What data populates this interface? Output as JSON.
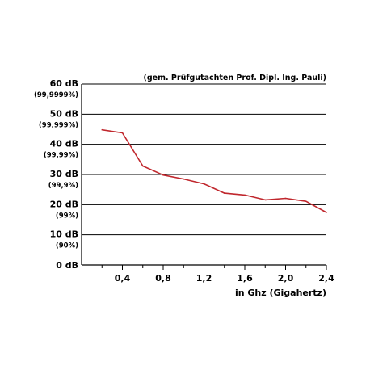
{
  "chart_data": {
    "type": "line",
    "title": "",
    "annotation": "(gem. Prüfgutachten Prof. Dipl. Ing. Pauli)",
    "xlabel": "in Ghz (Gigahertz)",
    "ylabel": "",
    "xlim": [
      0,
      2.4
    ],
    "ylim": [
      0,
      60
    ],
    "grid": true,
    "y_ticks": [
      {
        "value": 0,
        "label": "0 dB",
        "sublabel": ""
      },
      {
        "value": 10,
        "label": "10 dB",
        "sublabel": "(90%)"
      },
      {
        "value": 20,
        "label": "20 dB",
        "sublabel": "(99%)"
      },
      {
        "value": 30,
        "label": "30 dB",
        "sublabel": "(99,9%)"
      },
      {
        "value": 40,
        "label": "40 dB",
        "sublabel": "(99,99%)"
      },
      {
        "value": 50,
        "label": "50 dB",
        "sublabel": "(99,999%)"
      },
      {
        "value": 60,
        "label": "60 dB",
        "sublabel": "(99,9999%)"
      }
    ],
    "x_ticks": [
      {
        "value": 0.4,
        "label": "0,4"
      },
      {
        "value": 0.8,
        "label": "0,8"
      },
      {
        "value": 1.2,
        "label": "1,2"
      },
      {
        "value": 1.6,
        "label": "1,6"
      },
      {
        "value": 2.0,
        "label": "2,0"
      },
      {
        "value": 2.4,
        "label": "2,4"
      }
    ],
    "x_minor_ticks": [
      0.2,
      0.6,
      1.0,
      1.4,
      1.8,
      2.2
    ],
    "series": [
      {
        "color": "#c0272d",
        "x": [
          0.2,
          0.4,
          0.6,
          0.8,
          1.0,
          1.2,
          1.4,
          1.6,
          1.8,
          2.0,
          2.2,
          2.4
        ],
        "y": [
          44.8,
          43.8,
          32.8,
          29.8,
          28.5,
          26.9,
          23.8,
          23.2,
          21.6,
          22.1,
          21.1,
          17.4
        ]
      }
    ]
  }
}
